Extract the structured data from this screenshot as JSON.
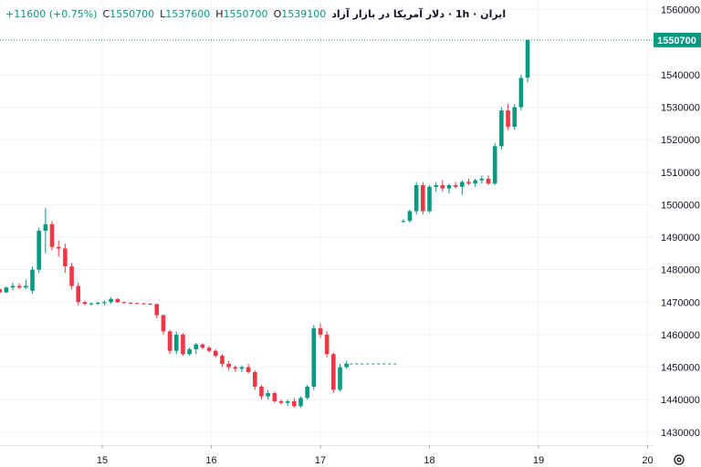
{
  "legend": {
    "symbol": "ایران · 1h · دلار آمریکا در بازار آزاد",
    "o_label": "O",
    "o_value": "1539100",
    "h_label": "H",
    "h_value": "1550700",
    "l_label": "L",
    "l_value": "1537600",
    "c_label": "C",
    "c_value": "1550700",
    "change": "+11600 (+0.75%)"
  },
  "settings_icon": "gear-icon",
  "colors": {
    "up": "#089981",
    "down": "#f23645",
    "price_line": "#089981",
    "grid": "#f0f3fa",
    "axis_text": "#131722"
  },
  "chart_data": {
    "type": "candlestick",
    "y_ticks": [
      1430000,
      1440000,
      1450000,
      1460000,
      1470000,
      1480000,
      1490000,
      1500000,
      1510000,
      1520000,
      1530000,
      1540000,
      1560000
    ],
    "ylim": [
      1426000,
      1563000
    ],
    "x_ticks": [
      15,
      16,
      17,
      18,
      19,
      20
    ],
    "last_price_label": "1550700",
    "last_price": 1550700,
    "prev_close_level": 1451000,
    "candles": [
      [
        14.0,
        1475000,
        1475500,
        1473000,
        1474000
      ],
      [
        14.06,
        1474000,
        1474500,
        1472500,
        1473000
      ],
      [
        14.12,
        1473000,
        1474800,
        1472800,
        1474500
      ],
      [
        14.18,
        1474500,
        1476000,
        1473800,
        1475000
      ],
      [
        14.24,
        1475000,
        1475800,
        1474000,
        1474500
      ],
      [
        14.3,
        1474500,
        1477000,
        1474000,
        1475000
      ],
      [
        14.36,
        1473500,
        1481000,
        1472500,
        1480000
      ],
      [
        14.42,
        1480000,
        1493000,
        1479000,
        1492000
      ],
      [
        14.48,
        1492000,
        1499000,
        1485000,
        1494000
      ],
      [
        14.54,
        1494000,
        1495000,
        1486000,
        1487000
      ],
      [
        14.6,
        1487000,
        1489000,
        1484000,
        1486500
      ],
      [
        14.66,
        1486500,
        1488000,
        1479000,
        1481000
      ],
      [
        14.72,
        1481000,
        1482000,
        1474000,
        1475000
      ],
      [
        14.78,
        1475000,
        1476000,
        1469000,
        1470000
      ],
      [
        14.84,
        1470000,
        1470500,
        1469000,
        1469500
      ],
      [
        14.9,
        1469500,
        1470000,
        1469000,
        1469600
      ],
      [
        14.96,
        1469600,
        1470200,
        1469200,
        1469800
      ],
      [
        15.02,
        1469800,
        1470500,
        1469000,
        1470000
      ],
      [
        15.08,
        1470000,
        1471500,
        1469500,
        1471000
      ],
      [
        15.14,
        1471000,
        1471200,
        1469800,
        1470000
      ],
      [
        15.2,
        1470000,
        1470200,
        1469500,
        1469800
      ],
      [
        15.26,
        1469800,
        1470000,
        1469500,
        1469700
      ],
      [
        15.32,
        1469700,
        1469900,
        1469500,
        1469600
      ],
      [
        15.38,
        1469600,
        1469800,
        1469400,
        1469500
      ],
      [
        15.44,
        1469500,
        1469700,
        1469300,
        1469400
      ],
      [
        15.5,
        1469400,
        1469600,
        1465000,
        1466000
      ],
      [
        15.56,
        1466000,
        1466200,
        1460000,
        1461000
      ],
      [
        15.62,
        1461000,
        1461500,
        1454000,
        1455000
      ],
      [
        15.68,
        1455000,
        1461000,
        1454000,
        1460000
      ],
      [
        15.74,
        1460000,
        1460500,
        1453500,
        1454000
      ],
      [
        15.8,
        1454000,
        1456000,
        1453500,
        1455500
      ],
      [
        15.86,
        1455500,
        1457500,
        1454000,
        1457000
      ],
      [
        15.92,
        1457000,
        1457300,
        1455500,
        1456000
      ],
      [
        15.98,
        1456000,
        1456500,
        1454500,
        1455000
      ],
      [
        16.04,
        1455000,
        1455500,
        1453000,
        1453500
      ],
      [
        16.1,
        1453500,
        1454000,
        1450000,
        1451000
      ],
      [
        16.16,
        1451000,
        1452000,
        1449000,
        1450000
      ],
      [
        16.22,
        1450000,
        1450500,
        1448500,
        1449500
      ],
      [
        16.28,
        1449500,
        1450500,
        1448500,
        1450000
      ],
      [
        16.34,
        1450000,
        1451000,
        1448000,
        1448500
      ],
      [
        16.4,
        1448500,
        1449000,
        1443000,
        1444000
      ],
      [
        16.46,
        1444000,
        1444500,
        1440000,
        1441000
      ],
      [
        16.52,
        1441000,
        1443000,
        1440000,
        1442000
      ],
      [
        16.58,
        1442000,
        1442500,
        1439000,
        1439500
      ],
      [
        16.64,
        1439500,
        1440000,
        1438500,
        1439000
      ],
      [
        16.7,
        1439000,
        1440000,
        1438000,
        1439500
      ],
      [
        16.76,
        1439500,
        1440500,
        1437500,
        1438000
      ],
      [
        16.82,
        1438000,
        1441000,
        1437500,
        1440500
      ],
      [
        16.88,
        1440500,
        1444500,
        1440000,
        1444000
      ],
      [
        16.94,
        1444000,
        1463000,
        1443000,
        1462000
      ],
      [
        17.0,
        1462000,
        1463500,
        1459000,
        1460000
      ],
      [
        17.06,
        1460000,
        1461000,
        1453000,
        1454000
      ],
      [
        17.12,
        1454000,
        1454500,
        1442000,
        1443000
      ],
      [
        17.18,
        1443000,
        1451000,
        1442500,
        1450000
      ],
      [
        17.24,
        1450000,
        1452000,
        1449500,
        1451000
      ],
      [
        17.76,
        1495000,
        1495500,
        1494500,
        1495000
      ],
      [
        17.82,
        1495000,
        1498500,
        1494500,
        1498000
      ],
      [
        17.88,
        1498000,
        1507000,
        1497000,
        1506000
      ],
      [
        17.94,
        1506000,
        1507000,
        1497000,
        1498000
      ],
      [
        18.0,
        1498000,
        1506000,
        1497500,
        1505500
      ],
      [
        18.06,
        1505500,
        1507000,
        1504000,
        1506000
      ],
      [
        18.12,
        1506000,
        1507500,
        1504000,
        1505000
      ],
      [
        18.18,
        1505000,
        1506500,
        1503500,
        1506000
      ],
      [
        18.24,
        1506000,
        1507000,
        1505000,
        1505500
      ],
      [
        18.3,
        1505500,
        1507500,
        1503000,
        1507000
      ],
      [
        18.36,
        1507000,
        1508000,
        1506000,
        1506500
      ],
      [
        18.42,
        1506500,
        1508000,
        1505500,
        1507500
      ],
      [
        18.48,
        1507500,
        1509000,
        1506500,
        1508000
      ],
      [
        18.54,
        1508000,
        1509000,
        1506000,
        1506500
      ],
      [
        18.6,
        1506500,
        1519000,
        1506000,
        1518000
      ],
      [
        18.66,
        1518000,
        1530000,
        1517000,
        1529000
      ],
      [
        18.72,
        1529000,
        1531000,
        1523000,
        1524000
      ],
      [
        18.78,
        1524000,
        1531000,
        1523000,
        1530000
      ],
      [
        18.84,
        1530000,
        1540000,
        1529000,
        1539000
      ],
      [
        18.9,
        1539100,
        1550700,
        1537600,
        1550700
      ]
    ]
  }
}
